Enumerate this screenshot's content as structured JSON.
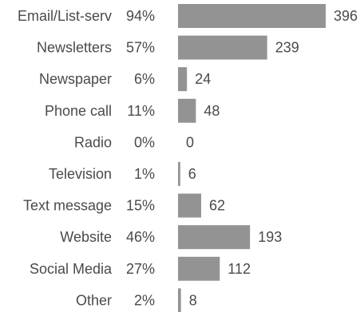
{
  "chart_data": {
    "type": "bar",
    "orientation": "horizontal",
    "categories": [
      "Email/List-serv",
      "Newsletters",
      "Newspaper",
      "Phone call",
      "Radio",
      "Television",
      "Text message",
      "Website",
      "Social Media",
      "Other"
    ],
    "percents": [
      "94%",
      "57%",
      "6%",
      "11%",
      "0%",
      "1%",
      "15%",
      "46%",
      "27%",
      "2%"
    ],
    "values": [
      396,
      239,
      24,
      48,
      0,
      6,
      62,
      193,
      112,
      8
    ],
    "title": "",
    "xlabel": "",
    "ylabel": "",
    "xlim": [
      0,
      396
    ],
    "grid": false,
    "legend": "none",
    "bar_color": "#939393",
    "text_color": "#4a4a4a"
  }
}
